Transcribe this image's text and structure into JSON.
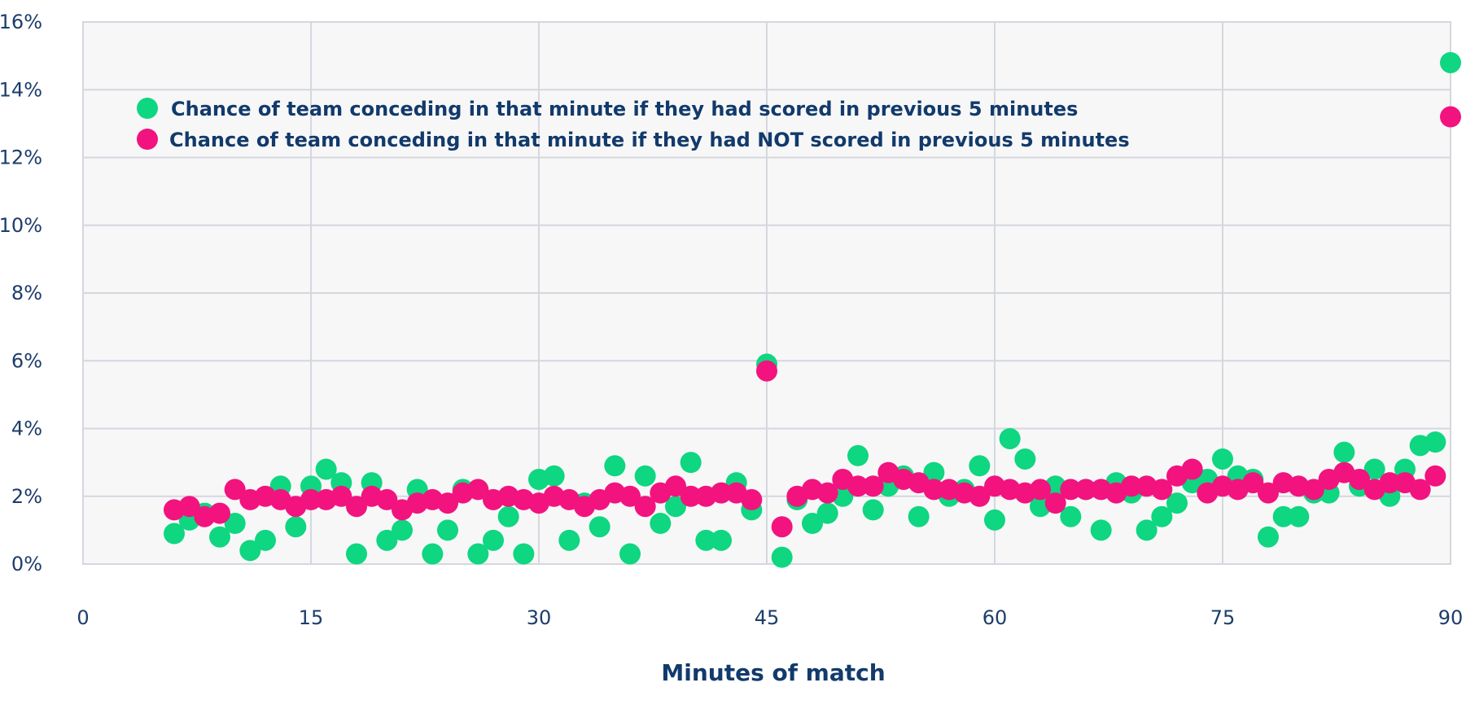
{
  "chart_data": {
    "type": "scatter",
    "title": "",
    "xlabel": "Minutes of match",
    "ylabel": "",
    "xlim": [
      0,
      90
    ],
    "ylim": [
      0,
      16
    ],
    "x_ticks": [
      0,
      15,
      30,
      45,
      60,
      75,
      90
    ],
    "y_ticks": [
      0,
      2,
      4,
      6,
      8,
      10,
      12,
      14,
      16
    ],
    "y_tick_labels": [
      "0%",
      "2%",
      "4%",
      "6%",
      "8%",
      "10%",
      "12%",
      "14%",
      "16%"
    ],
    "x_tick_labels": [
      "0",
      "15",
      "30",
      "45",
      "60",
      "75",
      "90"
    ],
    "grid": true,
    "legend_position": "top-left",
    "series": [
      {
        "name": "Chance of team conceding in that minute if they had scored in previous 5 minutes",
        "color": "#0fd680",
        "x": [
          6,
          7,
          8,
          9,
          10,
          11,
          12,
          13,
          14,
          15,
          16,
          17,
          18,
          19,
          20,
          21,
          22,
          23,
          24,
          25,
          26,
          27,
          28,
          29,
          30,
          31,
          32,
          33,
          34,
          35,
          36,
          37,
          38,
          39,
          40,
          41,
          42,
          43,
          44,
          45,
          46,
          47,
          48,
          49,
          50,
          51,
          52,
          53,
          54,
          55,
          56,
          57,
          58,
          59,
          60,
          61,
          62,
          63,
          64,
          65,
          66,
          67,
          68,
          69,
          70,
          71,
          72,
          73,
          74,
          75,
          76,
          77,
          78,
          79,
          80,
          81,
          82,
          83,
          84,
          85,
          86,
          87,
          88,
          89,
          90
        ],
        "y": [
          0.9,
          1.3,
          1.5,
          0.8,
          1.2,
          0.4,
          0.7,
          2.3,
          1.1,
          2.3,
          2.8,
          2.4,
          0.3,
          2.4,
          0.7,
          1.0,
          2.2,
          0.3,
          1.0,
          2.2,
          0.3,
          0.7,
          1.4,
          0.3,
          2.5,
          2.6,
          0.7,
          1.8,
          1.1,
          2.9,
          0.3,
          2.6,
          1.2,
          1.7,
          3.0,
          0.7,
          0.7,
          2.4,
          1.6,
          5.9,
          0.2,
          1.9,
          1.2,
          1.5,
          2.0,
          3.2,
          1.6,
          2.3,
          2.6,
          1.4,
          2.7,
          2.0,
          2.2,
          2.9,
          1.3,
          3.7,
          3.1,
          1.7,
          2.3,
          1.4,
          2.2,
          1.0,
          2.4,
          2.1,
          1.0,
          1.4,
          1.8,
          2.4,
          2.5,
          3.1,
          2.6,
          2.5,
          0.8,
          1.4,
          1.4,
          2.1,
          2.1,
          3.3,
          2.3,
          2.8,
          2.0,
          2.8,
          3.5,
          3.6,
          14.8
        ]
      },
      {
        "name": "Chance of team conceding in that minute if they had NOT scored in previous 5 minutes",
        "color": "#f2137f",
        "x": [
          6,
          7,
          8,
          9,
          10,
          11,
          12,
          13,
          14,
          15,
          16,
          17,
          18,
          19,
          20,
          21,
          22,
          23,
          24,
          25,
          26,
          27,
          28,
          29,
          30,
          31,
          32,
          33,
          34,
          35,
          36,
          37,
          38,
          39,
          40,
          41,
          42,
          43,
          44,
          45,
          46,
          47,
          48,
          49,
          50,
          51,
          52,
          53,
          54,
          55,
          56,
          57,
          58,
          59,
          60,
          61,
          62,
          63,
          64,
          65,
          66,
          67,
          68,
          69,
          70,
          71,
          72,
          73,
          74,
          75,
          76,
          77,
          78,
          79,
          80,
          81,
          82,
          83,
          84,
          85,
          86,
          87,
          88,
          89,
          90
        ],
        "y": [
          1.6,
          1.7,
          1.4,
          1.5,
          2.2,
          1.9,
          2.0,
          1.9,
          1.7,
          1.9,
          1.9,
          2.0,
          1.7,
          2.0,
          1.9,
          1.6,
          1.8,
          1.9,
          1.8,
          2.1,
          2.2,
          1.9,
          2.0,
          1.9,
          1.8,
          2.0,
          1.9,
          1.7,
          1.9,
          2.1,
          2.0,
          1.7,
          2.1,
          2.3,
          2.0,
          2.0,
          2.1,
          2.1,
          1.9,
          5.7,
          1.1,
          2.0,
          2.2,
          2.1,
          2.5,
          2.3,
          2.3,
          2.7,
          2.5,
          2.4,
          2.2,
          2.2,
          2.1,
          2.0,
          2.3,
          2.2,
          2.1,
          2.2,
          1.8,
          2.2,
          2.2,
          2.2,
          2.1,
          2.3,
          2.3,
          2.2,
          2.6,
          2.8,
          2.1,
          2.3,
          2.2,
          2.4,
          2.1,
          2.4,
          2.3,
          2.2,
          2.5,
          2.7,
          2.5,
          2.2,
          2.4,
          2.4,
          2.2,
          2.6,
          13.2
        ]
      }
    ]
  }
}
